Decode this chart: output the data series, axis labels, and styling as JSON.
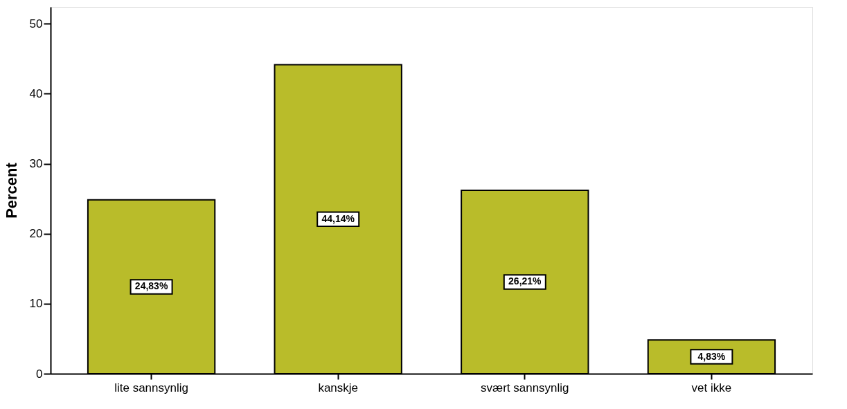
{
  "chart_data": {
    "type": "bar",
    "ylabel": "Percent",
    "categories": [
      "lite sannsynlig",
      "kanskje",
      "svært sannsynlig",
      "vet ikke"
    ],
    "values": [
      24.83,
      44.14,
      26.21,
      4.83
    ],
    "value_labels": [
      "24,83%",
      "44,14%",
      "26,21%",
      "4,83%"
    ],
    "color": "#b9bc2a",
    "ylim": [
      0,
      52.4
    ],
    "yticks": [
      0,
      10,
      20,
      30,
      40,
      50
    ],
    "grid": false
  }
}
